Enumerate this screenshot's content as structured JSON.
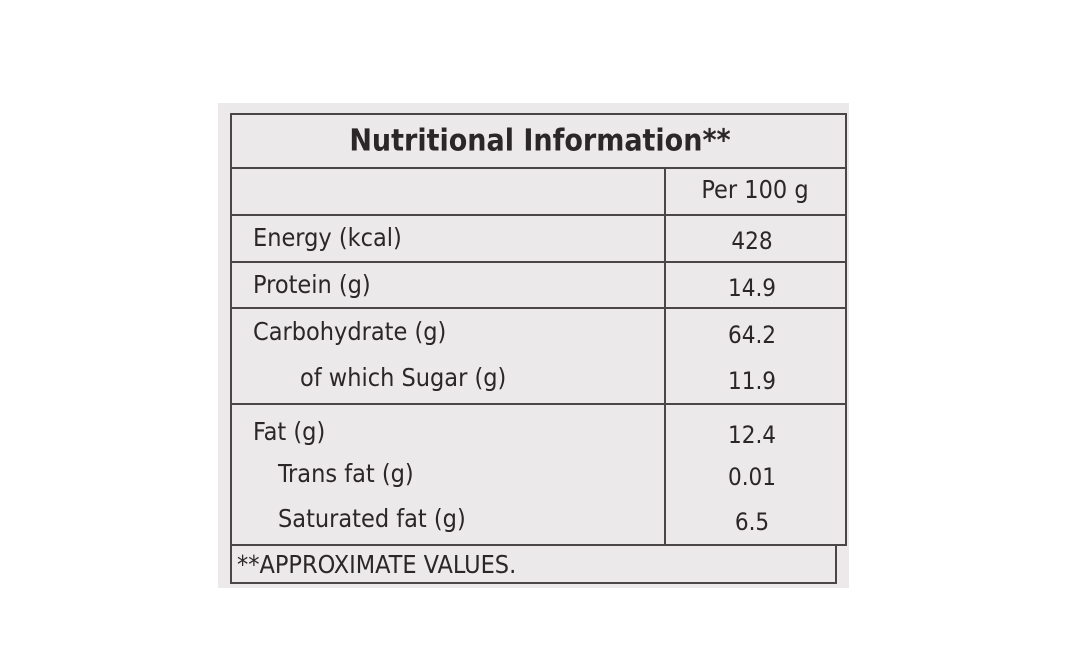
{
  "table": {
    "title": "Nutritional Information**",
    "column_header": "Per 100 g",
    "rows": [
      {
        "label": "Energy (kcal)",
        "value": "428"
      },
      {
        "label": "Protein (g)",
        "value": "14.9"
      },
      {
        "label": "Carbohydrate (g)",
        "value": "64.2"
      },
      {
        "label": "of which Sugar (g)",
        "value": "11.9"
      },
      {
        "label": "Fat (g)",
        "value": "12.4"
      },
      {
        "label": "Trans fat (g)",
        "value": "0.01"
      },
      {
        "label": "Saturated fat (g)",
        "value": "6.5"
      }
    ],
    "footer": "**APPROXIMATE VALUES."
  }
}
